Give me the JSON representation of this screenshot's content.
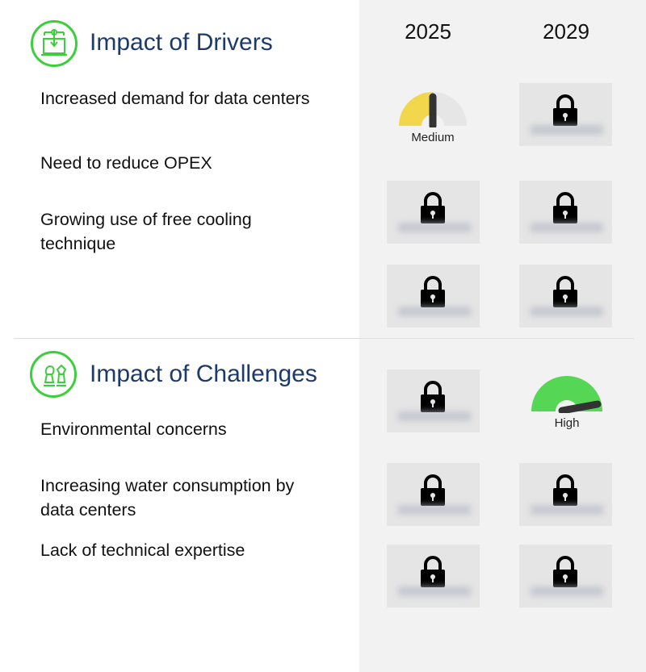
{
  "drivers": {
    "title": "Impact of Drivers",
    "icon": "data-center-icon",
    "items": [
      "Increased demand for data centers",
      "Need to reduce OPEX",
      "Growing use of free cooling technique"
    ]
  },
  "challenges": {
    "title": "Impact of Challenges",
    "icon": "chess-strategy-icon",
    "items": [
      "Environmental concerns",
      "Increasing water consumption by data centers",
      "Lack of technical expertise"
    ]
  },
  "years": [
    "2025",
    "2029"
  ],
  "gauges": {
    "drivers_row1_2025": {
      "label": "Medium",
      "level": 0.5,
      "color": "#f2d64b"
    },
    "challenges_row1_2029": {
      "label": "High",
      "level": 0.95,
      "color": "#55d655"
    }
  },
  "locked_icon": "lock-icon",
  "colors": {
    "accent": "#3ccf3c",
    "title": "#1d3a6b",
    "panel": "#f2f2f2"
  }
}
